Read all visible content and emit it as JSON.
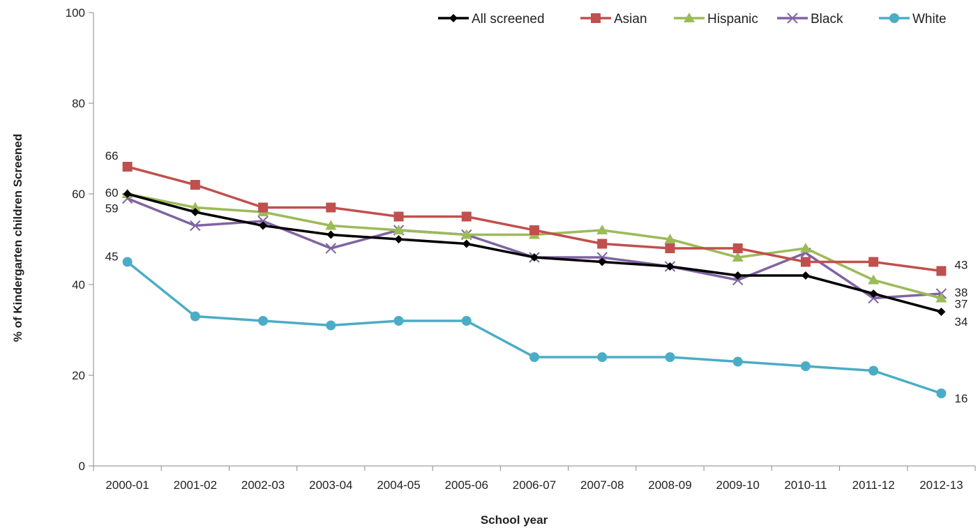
{
  "chart_data": {
    "type": "line",
    "xlabel": "School year",
    "ylabel": "% of Kindergarten children Screened",
    "ylim": [
      0,
      100
    ],
    "yticks": [
      0,
      20,
      40,
      60,
      80,
      100
    ],
    "grid": false,
    "legend_position": "top-right",
    "categories": [
      "2000-01",
      "2001-02",
      "2002-03",
      "2003-04",
      "2004-05",
      "2005-06",
      "2006-07",
      "2007-08",
      "2008-09",
      "2009-10",
      "2010-11",
      "2011-12",
      "2012-13"
    ],
    "series": [
      {
        "name": "All screened",
        "color": "#000000",
        "marker": "diamond",
        "values": [
          60,
          56,
          53,
          51,
          50,
          49,
          46,
          45,
          44,
          42,
          42,
          38,
          34
        ]
      },
      {
        "name": "Asian",
        "color": "#C0504D",
        "marker": "square",
        "values": [
          66,
          62,
          57,
          57,
          55,
          55,
          52,
          49,
          48,
          48,
          45,
          45,
          43
        ]
      },
      {
        "name": "Hispanic",
        "color": "#9BBB59",
        "marker": "triangle",
        "values": [
          60,
          57,
          56,
          53,
          52,
          51,
          51,
          52,
          50,
          46,
          48,
          41,
          37
        ]
      },
      {
        "name": "Black",
        "color": "#8064A2",
        "marker": "x",
        "values": [
          59,
          53,
          54,
          48,
          52,
          51,
          46,
          46,
          44,
          41,
          47,
          37,
          38
        ]
      },
      {
        "name": "White",
        "color": "#4BACC6",
        "marker": "circle",
        "values": [
          45,
          33,
          32,
          31,
          32,
          32,
          24,
          24,
          24,
          23,
          22,
          21,
          16
        ]
      }
    ],
    "annotations": [
      {
        "text": "66",
        "category": "2000-01",
        "value": 66,
        "side": "left"
      },
      {
        "text": "60",
        "category": "2000-01",
        "value": 60,
        "side": "left"
      },
      {
        "text": "59",
        "category": "2000-01",
        "value": 59,
        "side": "left"
      },
      {
        "text": "45",
        "category": "2000-01",
        "value": 45,
        "side": "left"
      },
      {
        "text": "43",
        "category": "2012-13",
        "value": 43,
        "side": "right"
      },
      {
        "text": "38",
        "category": "2012-13",
        "value": 38,
        "side": "right"
      },
      {
        "text": "37",
        "category": "2012-13",
        "value": 37,
        "side": "right"
      },
      {
        "text": "34",
        "category": "2012-13",
        "value": 34,
        "side": "right"
      },
      {
        "text": "16",
        "category": "2012-13",
        "value": 16,
        "side": "right"
      }
    ]
  }
}
